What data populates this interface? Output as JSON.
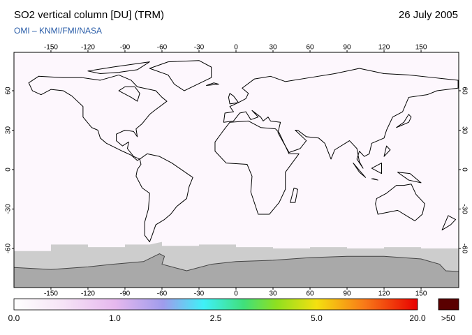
{
  "header": {
    "title": "SO2 vertical column [DU] (TRM)",
    "date": "26 July 2005",
    "subtitle": "OMI  –  KNMI/FMI/NASA"
  },
  "map": {
    "lon_ticks": [
      -150,
      -120,
      -90,
      -60,
      -30,
      0,
      30,
      60,
      90,
      120,
      150
    ],
    "lat_ticks": [
      -60,
      -30,
      0,
      30,
      60
    ]
  },
  "colorbar": {
    "labels": [
      "0.0",
      "1.0",
      "2.5",
      "5.0",
      "20.0"
    ],
    "overflow_label": ">50"
  }
}
